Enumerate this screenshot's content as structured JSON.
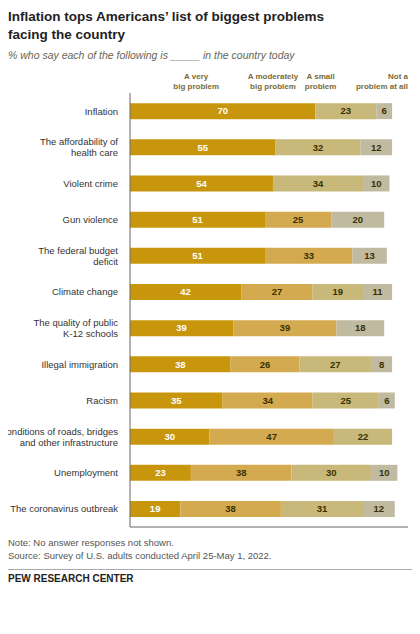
{
  "chart_data": {
    "type": "bar",
    "orientation": "horizontal",
    "stacked": true,
    "data_labels": true,
    "grid": false,
    "tick_labels": "y",
    "title": "Inflation tops Americans’ list of biggest problems\nfacing the country",
    "subtitle": "% who say each of the following is _____ in the country today",
    "categories": [
      "Inflation",
      "The affordability of\nhealth care",
      "Violent crime",
      "Gun violence",
      "The federal budget\ndeficit",
      "Climate change",
      "The quality of public\nK-12 schools",
      "Illegal immigration",
      "Racism",
      "Conditions of roads, bridges\nand other infrastructure",
      "Unemployment",
      "The coronavirus outbreak"
    ],
    "series": [
      {
        "name": "A very\nbig problem",
        "color": "#C8960C",
        "values": [
          70,
          55,
          54,
          51,
          51,
          42,
          39,
          38,
          35,
          30,
          23,
          19
        ]
      },
      {
        "name": "A moderately\nbig problem",
        "color": "#D4AA50",
        "values": [
          0,
          0,
          0,
          25,
          33,
          27,
          39,
          26,
          34,
          47,
          38,
          38
        ]
      },
      {
        "name": "A small\nproblem",
        "color": "#C8B87A",
        "values": [
          23,
          32,
          34,
          0,
          0,
          19,
          0,
          27,
          25,
          22,
          30,
          31
        ]
      },
      {
        "name": "Not a\nproblem at all",
        "color": "#C0BAA0",
        "values": [
          6,
          12,
          10,
          20,
          13,
          11,
          18,
          8,
          6,
          0,
          10,
          12
        ]
      }
    ],
    "xlim": [
      0,
      105
    ],
    "annotations": [
      "Note: No answer responses not shown.",
      "Source: Survey of U.S. adults conducted April 25-May 1, 2022.",
      "PEW RESEARCH CENTER"
    ]
  }
}
